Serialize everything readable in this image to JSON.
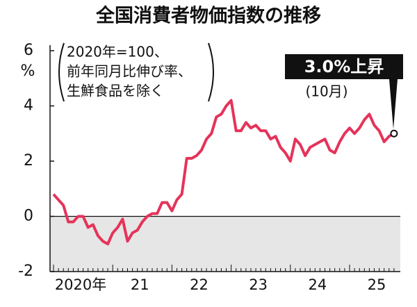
{
  "chart_data": {
    "type": "line",
    "title": "全国消費者物価指数の推移",
    "y_unit": "%",
    "note": [
      "2020年=100、",
      "前年同月比伸び率、",
      "生鮮食品を除く"
    ],
    "callout": "3.0%上昇",
    "callout_sub": "(10月)",
    "categories": [
      "2020年",
      null,
      null,
      null,
      null,
      null,
      null,
      null,
      null,
      null,
      null,
      null,
      "21",
      null,
      null,
      null,
      null,
      null,
      null,
      null,
      null,
      null,
      null,
      null,
      "22",
      null,
      null,
      null,
      null,
      null,
      null,
      null,
      null,
      null,
      null,
      null,
      "23",
      null,
      null,
      null,
      null,
      null,
      null,
      null,
      null,
      null,
      null,
      null,
      "24",
      null,
      null,
      null,
      null,
      null,
      null,
      null,
      null,
      null,
      null,
      null,
      "25",
      null,
      null,
      null,
      null,
      null,
      null,
      null,
      null,
      null
    ],
    "series": [
      {
        "color": "#e5335a",
        "values": [
          0.8,
          0.6,
          0.4,
          -0.2,
          -0.2,
          0.0,
          0.0,
          -0.4,
          -0.3,
          -0.7,
          -0.9,
          -1.0,
          -0.6,
          -0.4,
          -0.1,
          -0.9,
          -0.6,
          -0.5,
          -0.2,
          0.0,
          0.1,
          0.1,
          0.5,
          0.5,
          0.2,
          0.6,
          0.8,
          2.1,
          2.1,
          2.2,
          2.4,
          2.8,
          3.0,
          3.6,
          3.7,
          4.0,
          4.2,
          3.1,
          3.1,
          3.4,
          3.2,
          3.3,
          3.1,
          3.1,
          2.8,
          2.9,
          2.5,
          2.3,
          2.0,
          2.8,
          2.6,
          2.2,
          2.5,
          2.6,
          2.7,
          2.8,
          2.4,
          2.3,
          2.7,
          3.0,
          3.2,
          3.0,
          3.2,
          3.5,
          3.7,
          3.3,
          3.1,
          2.7,
          2.9,
          3.0
        ]
      }
    ],
    "ylim": [
      -2,
      6
    ],
    "yticks": [
      -2,
      0,
      2,
      4,
      6
    ],
    "negative_shade": "#e6e6e6"
  }
}
